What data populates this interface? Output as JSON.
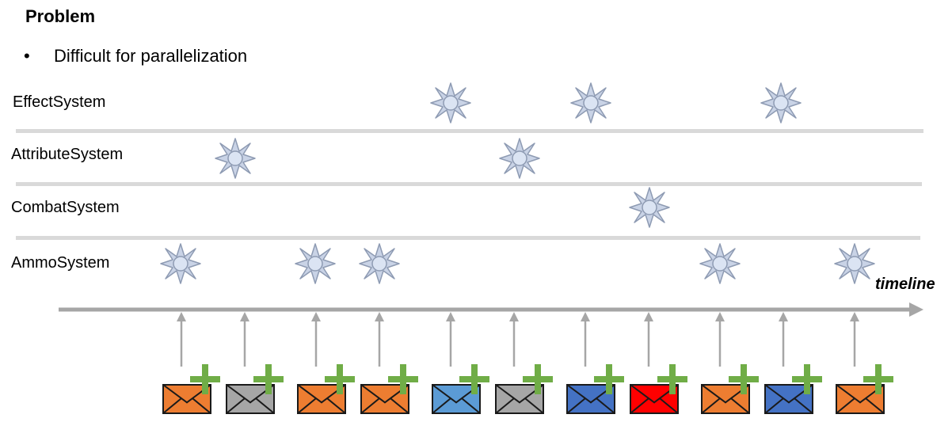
{
  "heading": "Problem",
  "bullet": "Difficult for parallelization",
  "systems": [
    {
      "label": "EffectSystem"
    },
    {
      "label": "AttributeSystem"
    },
    {
      "label": "CombatSystem"
    },
    {
      "label": "AmmoSystem"
    }
  ],
  "timeline_label": "timeline",
  "colors": {
    "orange": "#ed7d31",
    "gray": "#a6a6a6",
    "light_blue": "#5b9bd5",
    "blue": "#4472c4",
    "red": "#ff0000",
    "plus_green": "#70ad47",
    "sun_fill": "#c9d3e6",
    "sun_stroke": "#8e9bb3",
    "axis_gray": "#a6a6a6"
  },
  "message_sequence": [
    "orange",
    "gray",
    "orange",
    "orange",
    "light_blue",
    "gray",
    "blue",
    "red",
    "orange",
    "blue",
    "orange"
  ],
  "event_icon": "sun-burst-icon",
  "message_icon": "envelope-icon",
  "new_icon": "plus-icon"
}
